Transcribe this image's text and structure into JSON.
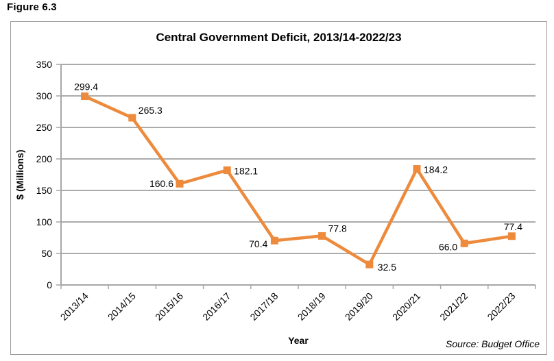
{
  "figure_label": "Figure 6.3",
  "chart_data": {
    "type": "line",
    "title": "Central Government Deficit, 2013/14-2022/23",
    "xlabel": "Year",
    "ylabel": "$ (Millions)",
    "source": "Source: Budget Office",
    "categories": [
      "2013/14",
      "2014/15",
      "2015/16",
      "2016/17",
      "2017/18",
      "2018/19",
      "2019/20",
      "2020/21",
      "2021/22",
      "2022/23"
    ],
    "values": [
      299.4,
      265.3,
      160.6,
      182.1,
      70.4,
      77.8,
      32.5,
      184.2,
      66.0,
      77.4
    ],
    "point_labels": [
      "299.4",
      "265.3",
      "160.6",
      "182.1",
      "70.4",
      "77.8",
      "32.5",
      "184.2",
      "66.0",
      "77.4"
    ],
    "label_positions": [
      "above",
      "above-right",
      "left",
      "right",
      "left-below",
      "above-right",
      "right-below",
      "right",
      "left-below",
      "above"
    ],
    "ylim": [
      0,
      350
    ],
    "y_ticks": [
      0,
      50,
      100,
      150,
      200,
      250,
      300,
      350
    ],
    "grid": "horizontal",
    "legend": "none",
    "marker": "square",
    "line_color": "#ED8A3C",
    "grid_color": "#ABABAB",
    "axis_color": "#A6A6A6",
    "text_color": "#000000"
  }
}
